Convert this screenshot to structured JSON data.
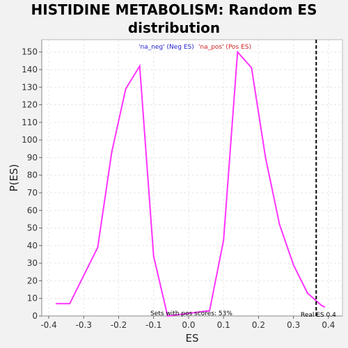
{
  "chart_data": {
    "type": "line",
    "title_lines": [
      "HISTIDINE METABOLISM: Random ES",
      "distribution"
    ],
    "xlabel": "ES",
    "ylabel": "P(ES)",
    "xlim": [
      -0.42,
      0.44
    ],
    "ylim": [
      0,
      157
    ],
    "xticks": [
      "-0.4",
      "-0.3",
      "-0.2",
      "-0.1",
      "0.0",
      "0.1",
      "0.2",
      "0.3",
      "0.4"
    ],
    "xtick_values": [
      -0.4,
      -0.3,
      -0.2,
      -0.1,
      0.0,
      0.1,
      0.2,
      0.3,
      0.4
    ],
    "yticks": [
      "0",
      "10",
      "20",
      "30",
      "40",
      "50",
      "60",
      "70",
      "80",
      "90",
      "100",
      "110",
      "120",
      "130",
      "140",
      "150"
    ],
    "ytick_values": [
      0,
      10,
      20,
      30,
      40,
      50,
      60,
      70,
      80,
      90,
      100,
      110,
      120,
      130,
      140,
      150
    ],
    "grid": true,
    "series": [
      {
        "color": "#ff33ff",
        "x": [
          -0.38,
          -0.34,
          -0.26,
          -0.22,
          -0.18,
          -0.14,
          -0.1,
          -0.06,
          0.06,
          0.1,
          0.14,
          0.18,
          0.22,
          0.26,
          0.3,
          0.34,
          0.38,
          0.39
        ],
        "y": [
          7,
          7,
          39,
          93,
          129,
          142,
          34,
          0,
          3,
          43,
          150,
          141,
          90,
          52,
          29,
          13,
          6,
          5
        ]
      }
    ],
    "legend": {
      "neg_label": "'na_neg' (Neg ES)",
      "pos_label": "'na_pos' (Pos ES)",
      "neg_color": "#2222cc",
      "pos_color": "#cc2222",
      "placement": "top-center"
    },
    "real_es": {
      "value": 0.365,
      "label": "Real ES 0.4"
    },
    "annotation": "Sets with pos scores: 53%"
  }
}
